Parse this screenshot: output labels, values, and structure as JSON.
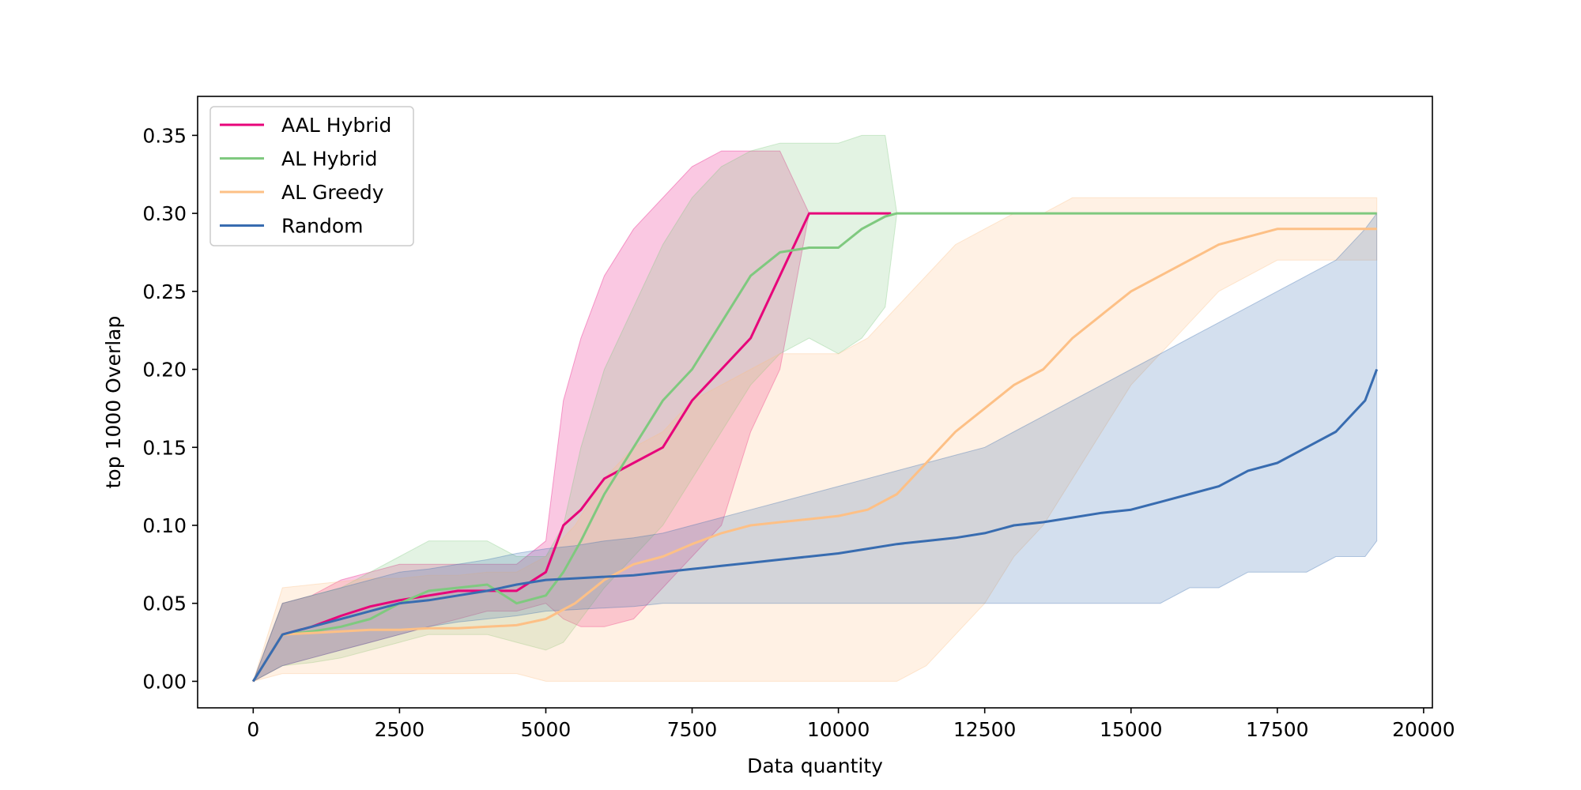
{
  "chart_data": {
    "type": "line",
    "title": "",
    "xlabel": "Data quantity",
    "ylabel": "top 1000 Overlap",
    "xlim": [
      -950,
      20150
    ],
    "ylim": [
      -0.017,
      0.375
    ],
    "xticks": [
      0,
      2500,
      5000,
      7500,
      10000,
      12500,
      15000,
      17500,
      20000
    ],
    "xtick_labels": [
      "0",
      "2500",
      "5000",
      "7500",
      "10000",
      "12500",
      "15000",
      "17500",
      "20000"
    ],
    "yticks": [
      0.0,
      0.05,
      0.1,
      0.15,
      0.2,
      0.25,
      0.3,
      0.35
    ],
    "ytick_labels": [
      "0.00",
      "0.05",
      "0.10",
      "0.15",
      "0.20",
      "0.25",
      "0.30",
      "0.35"
    ],
    "grid": false,
    "legend_position": "top-left",
    "series": [
      {
        "name": "AAL Hybrid",
        "color": "#e7047a",
        "x": [
          0,
          500,
          1000,
          1500,
          2000,
          2500,
          3000,
          3500,
          4000,
          4500,
          5000,
          5300,
          5600,
          6000,
          6500,
          7000,
          7500,
          8000,
          8500,
          9000,
          9500,
          10000,
          10900
        ],
        "y": [
          0.0,
          0.03,
          0.035,
          0.042,
          0.048,
          0.052,
          0.055,
          0.058,
          0.058,
          0.058,
          0.07,
          0.1,
          0.11,
          0.13,
          0.14,
          0.15,
          0.18,
          0.2,
          0.22,
          0.26,
          0.3,
          0.3,
          0.3
        ],
        "band_low": [
          0.0,
          0.01,
          0.015,
          0.02,
          0.025,
          0.03,
          0.035,
          0.04,
          0.045,
          0.045,
          0.05,
          0.04,
          0.035,
          0.035,
          0.04,
          0.06,
          0.08,
          0.1,
          0.16,
          0.2,
          0.3,
          0.3,
          0.3
        ],
        "band_high": [
          0.0,
          0.05,
          0.055,
          0.065,
          0.07,
          0.075,
          0.075,
          0.075,
          0.075,
          0.075,
          0.09,
          0.18,
          0.22,
          0.26,
          0.29,
          0.31,
          0.33,
          0.34,
          0.34,
          0.34,
          0.3,
          0.3,
          0.3
        ]
      },
      {
        "name": "AL Hybrid",
        "color": "#7fc97f",
        "x": [
          0,
          500,
          1000,
          1500,
          2000,
          2500,
          3000,
          3500,
          4000,
          4500,
          5000,
          5300,
          5600,
          6000,
          6500,
          7000,
          7500,
          8000,
          8500,
          9000,
          9500,
          10000,
          10400,
          10800,
          11000,
          12500,
          15000,
          17500,
          19200
        ],
        "y": [
          0.0,
          0.03,
          0.032,
          0.035,
          0.04,
          0.05,
          0.058,
          0.06,
          0.062,
          0.05,
          0.055,
          0.07,
          0.09,
          0.12,
          0.15,
          0.18,
          0.2,
          0.23,
          0.26,
          0.275,
          0.278,
          0.278,
          0.29,
          0.298,
          0.3,
          0.3,
          0.3,
          0.3,
          0.3
        ],
        "band_low": [
          0.0,
          0.01,
          0.012,
          0.015,
          0.02,
          0.025,
          0.03,
          0.03,
          0.03,
          0.025,
          0.02,
          0.025,
          0.04,
          0.06,
          0.08,
          0.1,
          0.13,
          0.16,
          0.19,
          0.21,
          0.22,
          0.21,
          0.22,
          0.24,
          0.3,
          0.3,
          0.3,
          0.3,
          0.3
        ],
        "band_high": [
          0.0,
          0.05,
          0.055,
          0.06,
          0.07,
          0.08,
          0.09,
          0.09,
          0.09,
          0.08,
          0.08,
          0.1,
          0.15,
          0.2,
          0.24,
          0.28,
          0.31,
          0.33,
          0.34,
          0.345,
          0.345,
          0.345,
          0.35,
          0.35,
          0.3,
          0.3,
          0.3,
          0.3,
          0.3
        ]
      },
      {
        "name": "AL Greedy",
        "color": "#fdc086",
        "x": [
          0,
          500,
          1000,
          1500,
          2000,
          2500,
          3000,
          3500,
          4000,
          4500,
          5000,
          5500,
          6000,
          6500,
          7000,
          7500,
          8000,
          8500,
          9000,
          9500,
          10000,
          10500,
          11000,
          11500,
          12000,
          12500,
          13000,
          13500,
          14000,
          14500,
          15000,
          15500,
          16000,
          16500,
          17000,
          17500,
          18000,
          18500,
          19000,
          19200
        ],
        "y": [
          0.0,
          0.03,
          0.031,
          0.032,
          0.033,
          0.033,
          0.034,
          0.034,
          0.035,
          0.036,
          0.04,
          0.05,
          0.065,
          0.075,
          0.08,
          0.088,
          0.095,
          0.1,
          0.102,
          0.104,
          0.106,
          0.11,
          0.12,
          0.14,
          0.16,
          0.175,
          0.19,
          0.2,
          0.22,
          0.235,
          0.25,
          0.26,
          0.27,
          0.28,
          0.285,
          0.29,
          0.29,
          0.29,
          0.29,
          0.29
        ],
        "band_low": [
          0.0,
          0.005,
          0.005,
          0.005,
          0.005,
          0.005,
          0.005,
          0.005,
          0.005,
          0.005,
          0.0,
          0.0,
          0.0,
          0.0,
          0.0,
          0.0,
          0.0,
          0.0,
          0.0,
          0.0,
          0.0,
          0.0,
          0.0,
          0.01,
          0.03,
          0.05,
          0.08,
          0.1,
          0.13,
          0.16,
          0.19,
          0.21,
          0.23,
          0.25,
          0.26,
          0.27,
          0.27,
          0.27,
          0.27,
          0.27
        ],
        "band_high": [
          0.0,
          0.06,
          0.062,
          0.064,
          0.066,
          0.066,
          0.068,
          0.068,
          0.07,
          0.07,
          0.08,
          0.1,
          0.13,
          0.15,
          0.16,
          0.18,
          0.19,
          0.2,
          0.21,
          0.21,
          0.21,
          0.22,
          0.24,
          0.26,
          0.28,
          0.29,
          0.3,
          0.3,
          0.31,
          0.31,
          0.31,
          0.31,
          0.31,
          0.31,
          0.31,
          0.31,
          0.31,
          0.31,
          0.31,
          0.31
        ]
      },
      {
        "name": "Random",
        "color": "#386cb0",
        "x": [
          0,
          500,
          1000,
          1500,
          2000,
          2500,
          3000,
          3500,
          4000,
          4500,
          5000,
          5500,
          6000,
          6500,
          7000,
          7500,
          8000,
          8500,
          9000,
          9500,
          10000,
          10500,
          11000,
          11500,
          12000,
          12500,
          13000,
          13500,
          14000,
          14500,
          15000,
          15500,
          16000,
          16500,
          17000,
          17500,
          18000,
          18500,
          19000,
          19200
        ],
        "y": [
          0.0,
          0.03,
          0.035,
          0.04,
          0.045,
          0.05,
          0.052,
          0.055,
          0.058,
          0.062,
          0.065,
          0.066,
          0.067,
          0.068,
          0.07,
          0.072,
          0.074,
          0.076,
          0.078,
          0.08,
          0.082,
          0.085,
          0.088,
          0.09,
          0.092,
          0.095,
          0.1,
          0.102,
          0.105,
          0.108,
          0.11,
          0.115,
          0.12,
          0.125,
          0.135,
          0.14,
          0.15,
          0.16,
          0.18,
          0.2
        ],
        "band_low": [
          0.0,
          0.01,
          0.015,
          0.02,
          0.025,
          0.03,
          0.035,
          0.038,
          0.04,
          0.042,
          0.045,
          0.046,
          0.047,
          0.048,
          0.05,
          0.05,
          0.05,
          0.05,
          0.05,
          0.05,
          0.05,
          0.05,
          0.05,
          0.05,
          0.05,
          0.05,
          0.05,
          0.05,
          0.05,
          0.05,
          0.05,
          0.05,
          0.06,
          0.06,
          0.07,
          0.07,
          0.07,
          0.08,
          0.08,
          0.09
        ],
        "band_high": [
          0.0,
          0.05,
          0.055,
          0.06,
          0.065,
          0.07,
          0.072,
          0.075,
          0.078,
          0.082,
          0.085,
          0.087,
          0.09,
          0.092,
          0.095,
          0.1,
          0.105,
          0.11,
          0.115,
          0.12,
          0.125,
          0.13,
          0.135,
          0.14,
          0.145,
          0.15,
          0.16,
          0.17,
          0.18,
          0.19,
          0.2,
          0.21,
          0.22,
          0.23,
          0.24,
          0.25,
          0.26,
          0.27,
          0.29,
          0.3
        ]
      }
    ]
  }
}
